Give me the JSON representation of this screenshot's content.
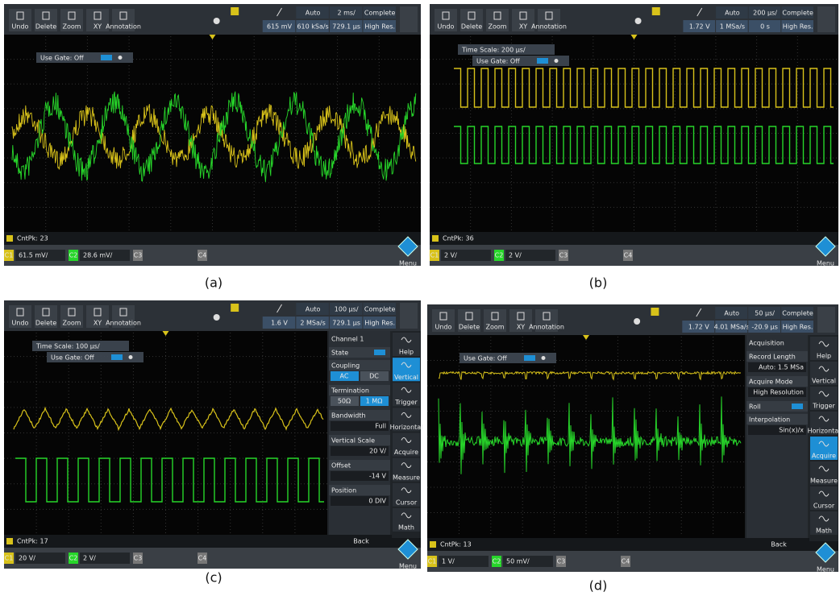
{
  "toolbar_buttons": [
    "Undo",
    "Delete",
    "Zoom",
    "XY",
    "Annotation"
  ],
  "menu_label": "Menu",
  "panels": [
    {
      "caption": "(a)",
      "trigger_mode": "Auto",
      "time_scale": "2 ms/",
      "acq_status": "Complete",
      "trigger_level": "615 mV",
      "sample_rate": "610 kSa/s",
      "position": "729.1 µs",
      "acq_mode": "High Res.",
      "overlay": [
        "Use Gate: Off"
      ],
      "count": "CntPk: 23",
      "channels": [
        {
          "name": "C1",
          "scale": "61.5 mV/"
        },
        {
          "name": "C2",
          "scale": "28.6 mV/"
        },
        {
          "name": "C3"
        },
        {
          "name": "C4"
        }
      ]
    },
    {
      "caption": "(b)",
      "trigger_mode": "Auto",
      "time_scale": "200 µs/",
      "acq_status": "Complete",
      "trigger_level": "1.72 V",
      "sample_rate": "1 MSa/s",
      "position": "0 s",
      "acq_mode": "High Res.",
      "overlay": [
        "Time Scale: 200 µs/",
        "Use Gate: Off"
      ],
      "count": "CntPk: 36",
      "channels": [
        {
          "name": "C1",
          "scale": "2 V/"
        },
        {
          "name": "C2",
          "scale": "2 V/"
        },
        {
          "name": "C3"
        },
        {
          "name": "C4"
        }
      ]
    },
    {
      "caption": "(c)",
      "trigger_mode": "Auto",
      "time_scale": "100 µs/",
      "acq_status": "Complete",
      "trigger_level": "1.6 V",
      "sample_rate": "2 MSa/s",
      "position": "729.1 µs",
      "acq_mode": "High Res.",
      "overlay": [
        "Time Scale: 100 µs/",
        "Use Gate: Off"
      ],
      "count": "CntPk: 17",
      "channels": [
        {
          "name": "C1",
          "scale": "20 V/"
        },
        {
          "name": "C2",
          "scale": "2 V/"
        },
        {
          "name": "C3"
        },
        {
          "name": "C4"
        }
      ],
      "settings": {
        "title": "Channel 1",
        "rows": [
          {
            "label": "State",
            "toggle": true
          },
          {
            "label": "Coupling",
            "options": [
              "AC",
              "DC"
            ]
          },
          {
            "label": "Termination",
            "options": [
              "50Ω",
              "1 MΩ"
            ]
          },
          {
            "label": "Bandwidth",
            "value": "Full"
          },
          {
            "label": "Vertical Scale",
            "value": "20 V/"
          },
          {
            "label": "Offset",
            "value": "-14 V"
          },
          {
            "label": "Position",
            "value": "0 DIV"
          }
        ],
        "back": "Back"
      },
      "sidebar": [
        "Help",
        "Vertical",
        "Trigger",
        "Horizontal",
        "Acquire",
        "Measure",
        "Cursor",
        "Math"
      ],
      "sidebar_active": 1
    },
    {
      "caption": "(d)",
      "trigger_mode": "Auto",
      "time_scale": "50 µs/",
      "acq_status": "Complete",
      "trigger_level": "1.72 V",
      "sample_rate": "4.01 MSa/s",
      "position": "-20.9 µs",
      "acq_mode": "High Res.",
      "overlay": [
        "Use Gate: Off"
      ],
      "count": "CntPk: 13",
      "channels": [
        {
          "name": "C1",
          "scale": "1 V/"
        },
        {
          "name": "C2",
          "scale": "50 mV/"
        },
        {
          "name": "C3"
        },
        {
          "name": "C4"
        }
      ],
      "settings": {
        "title": "Acquisition",
        "rows": [
          {
            "label": "Record Length",
            "value": "Auto: 1.5 MSa"
          },
          {
            "label": "Acquire Mode",
            "value": "High Resolution"
          },
          {
            "label": "Roll",
            "toggle": true
          },
          {
            "label": "Interpolation",
            "value": "Sin(x)/x"
          }
        ],
        "back": "Back"
      },
      "sidebar": [
        "Help",
        "Vertical",
        "Trigger",
        "Horizontal",
        "Acquire",
        "Measure",
        "Cursor",
        "Math"
      ],
      "sidebar_active": 4
    }
  ]
}
